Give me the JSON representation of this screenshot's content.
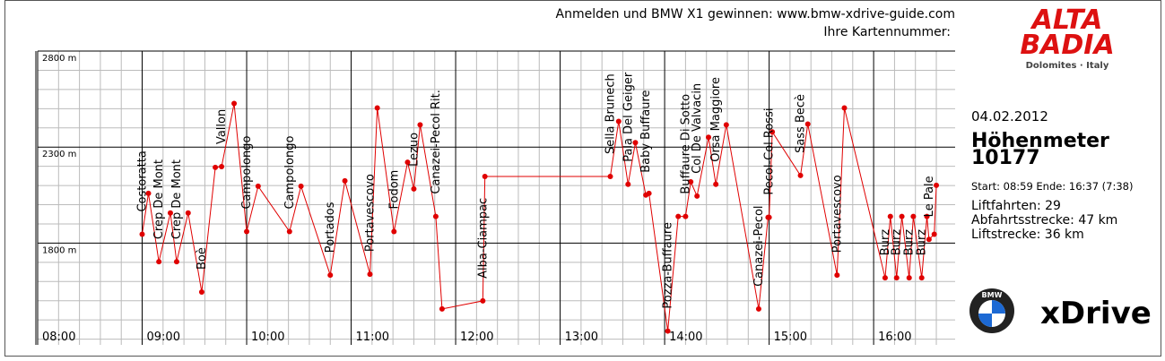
{
  "header": {
    "promo": "Anmelden und BMW X1 gewinnen: www.bmw-xdrive-guide.com",
    "card": "Ihre Kartennummer:"
  },
  "logo": {
    "title1": "ALTA",
    "title2": "BADIA",
    "subtitle": "Dolomites · Italy"
  },
  "panel": {
    "date": "04.02.2012",
    "heading": "Höhenmeter",
    "total": "10177",
    "times": "Start: 08:59 Ende: 16:37 (7:38)",
    "lifts": "Liftfahrten: 29",
    "downhill": "Abfahrtsstrecke: 47 km",
    "liftdistance": "Liftstrecke: 36 km"
  },
  "brand": {
    "badge": "BMW",
    "name": "xDrive"
  },
  "chart_data": {
    "type": "line",
    "color": "#e00000",
    "grid": true,
    "xlim": [
      8,
      16.78
    ],
    "ylim": [
      1270,
      2800
    ],
    "xticks": [
      {
        "value": 8,
        "label": "08:00"
      },
      {
        "value": 9,
        "label": "09:00"
      },
      {
        "value": 10,
        "label": "10:00"
      },
      {
        "value": 11,
        "label": "11:00"
      },
      {
        "value": 12,
        "label": "12:00"
      },
      {
        "value": 13,
        "label": "13:00"
      },
      {
        "value": 14,
        "label": "14:00"
      },
      {
        "value": 15,
        "label": "15:00"
      },
      {
        "value": 16,
        "label": "16:00"
      }
    ],
    "yticks": [
      {
        "value": 1800,
        "label": "1800 m"
      },
      {
        "value": 2300,
        "label": "2300 m"
      },
      {
        "value": 2800,
        "label": "2800 m"
      }
    ],
    "minor_xticks": [
      8.2,
      8.4,
      8.6,
      8.8,
      9.2,
      9.4,
      9.6,
      9.8,
      10.2,
      10.4,
      10.6,
      10.8,
      11.2,
      11.4,
      11.6,
      11.8,
      12.2,
      12.4,
      12.6,
      12.8,
      13.2,
      13.4,
      13.6,
      13.8,
      14.2,
      14.4,
      14.6,
      14.8,
      15.2,
      15.4,
      15.6,
      15.8,
      16.2,
      16.4,
      16.6
    ],
    "minor_yticks": [
      1300,
      1400,
      1500,
      1600,
      1700,
      1900,
      2000,
      2100,
      2200,
      2400,
      2500,
      2600,
      2700
    ],
    "x": [
      9.0,
      9.06,
      9.16,
      9.27,
      9.33,
      9.44,
      9.57,
      9.7,
      9.76,
      9.88,
      10.0,
      10.11,
      10.41,
      10.52,
      10.8,
      10.94,
      11.18,
      11.25,
      11.41,
      11.54,
      11.6,
      11.66,
      11.81,
      11.87,
      12.26,
      12.28,
      13.48,
      13.56,
      13.65,
      13.72,
      13.82,
      13.85,
      14.03,
      14.13,
      14.2,
      14.25,
      14.31,
      14.42,
      14.49,
      14.59,
      14.9,
      14.99,
      15.0,
      15.03,
      15.3,
      15.37,
      15.65,
      15.72,
      16.11,
      16.16,
      16.22,
      16.27,
      16.34,
      16.38,
      16.46,
      16.51,
      16.53,
      16.58,
      16.6
    ],
    "values": [
      1846,
      2059,
      1703,
      1957,
      1703,
      1957,
      1545,
      2194,
      2198,
      2527,
      1860,
      2096,
      1860,
      2096,
      1633,
      2124,
      1638,
      2504,
      1860,
      2221,
      2082,
      2416,
      1939,
      1457,
      1499,
      2147,
      2147,
      2434,
      2106,
      2323,
      2050,
      2059,
      1342,
      1939,
      1939,
      2119,
      2045,
      2351,
      2106,
      2416,
      1457,
      1934,
      1934,
      2379,
      2152,
      2420,
      1633,
      2504,
      1619,
      1939,
      1619,
      1939,
      1619,
      1939,
      1619,
      1939,
      1819,
      1846,
      2101
    ],
    "annotations": [
      {
        "text": "Costoratta",
        "x": 9.0,
        "y": 1846
      },
      {
        "text": "Crep De Mont",
        "x": 9.16,
        "y": 1703
      },
      {
        "text": "Crep De Mont",
        "x": 9.33,
        "y": 1703
      },
      {
        "text": "Boè",
        "x": 9.57,
        "y": 1545
      },
      {
        "text": "Vallon",
        "x": 9.76,
        "y": 2198
      },
      {
        "text": "Campolongo",
        "x": 10.0,
        "y": 1860
      },
      {
        "text": "Campolongo",
        "x": 10.41,
        "y": 1860
      },
      {
        "text": "Portados",
        "x": 10.8,
        "y": 1633
      },
      {
        "text": "Portavescovo",
        "x": 11.18,
        "y": 1638
      },
      {
        "text": "Fodom",
        "x": 11.41,
        "y": 1860
      },
      {
        "text": "Lezuo",
        "x": 11.6,
        "y": 2082
      },
      {
        "text": "Canazei-Pecol Rit.",
        "x": 11.81,
        "y": 1939
      },
      {
        "text": "Alba-Ciampac",
        "x": 12.26,
        "y": 1499
      },
      {
        "text": "Sella Brunech",
        "x": 13.48,
        "y": 2147
      },
      {
        "text": "Pala Del Geiger",
        "x": 13.65,
        "y": 2106
      },
      {
        "text": "Baby Buffaure",
        "x": 13.82,
        "y": 2050
      },
      {
        "text": "Pozza-Buffaure",
        "x": 14.03,
        "y": 1342
      },
      {
        "text": "Buffaure Di Sotto",
        "x": 14.2,
        "y": 1939
      },
      {
        "text": "Col De Valvacin",
        "x": 14.31,
        "y": 2045
      },
      {
        "text": "Orsa Maggiore",
        "x": 14.49,
        "y": 2106
      },
      {
        "text": "Canazei-Pecol",
        "x": 14.9,
        "y": 1457
      },
      {
        "text": "Pecol-Col Rossi",
        "x": 15.0,
        "y": 1934
      },
      {
        "text": "Sass Becè",
        "x": 15.3,
        "y": 2152
      },
      {
        "text": "Portavescovo",
        "x": 15.65,
        "y": 1633
      },
      {
        "text": "Burz",
        "x": 16.11,
        "y": 1619
      },
      {
        "text": "Burz",
        "x": 16.22,
        "y": 1619
      },
      {
        "text": "Burz",
        "x": 16.34,
        "y": 1619
      },
      {
        "text": "Burz",
        "x": 16.46,
        "y": 1619
      },
      {
        "text": "Le Pale",
        "x": 16.53,
        "y": 1819
      }
    ]
  }
}
